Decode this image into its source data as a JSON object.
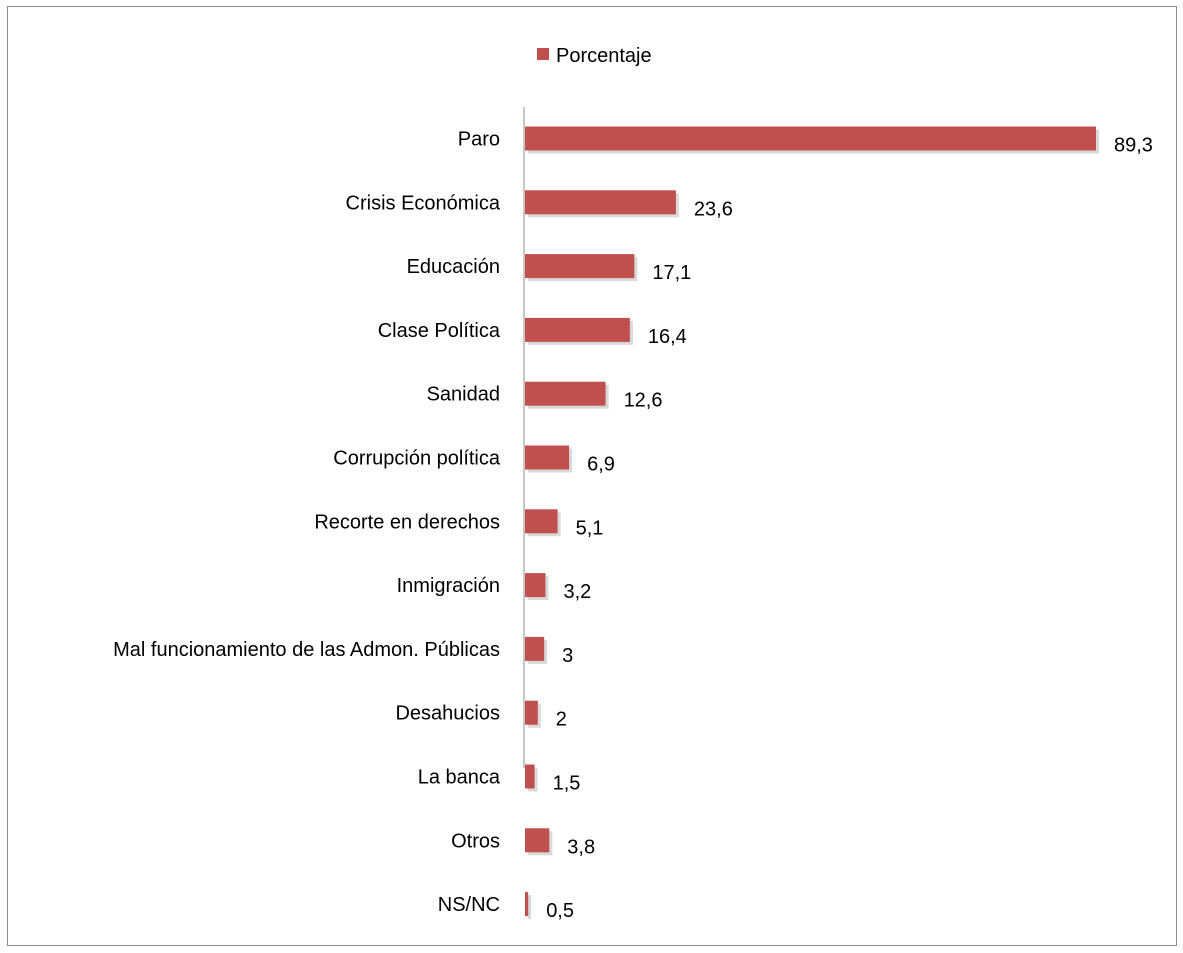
{
  "chart_data": {
    "type": "bar",
    "orientation": "horizontal",
    "categories": [
      "Paro",
      "Crisis Económica",
      "Educación",
      "Clase Política",
      "Sanidad",
      "Corrupción política",
      "Recorte en derechos",
      "Inmigración",
      "Mal funcionamiento de las Admon. Públicas",
      "Desahucios",
      "La banca",
      "Otros",
      "NS/NC"
    ],
    "series": [
      {
        "name": "Porcentaje",
        "values": [
          89.3,
          23.6,
          17.1,
          16.4,
          12.6,
          6.9,
          5.1,
          3.2,
          3,
          2,
          1.5,
          3.8,
          0.5
        ],
        "labels": [
          "89,3",
          "23,6",
          "17,1",
          "16,4",
          "12,6",
          "6,9",
          "5,1",
          "3,2",
          "3",
          "2",
          "1,5",
          "3,8",
          "0,5"
        ]
      }
    ],
    "xlim": [
      0,
      89.3
    ],
    "grid": false,
    "legend": "top",
    "colors": {
      "bar": "#c0504d",
      "bar_shadow": "#d9d9d9",
      "axis": "#8c8c8c",
      "frame": "#8c8c8c"
    }
  }
}
